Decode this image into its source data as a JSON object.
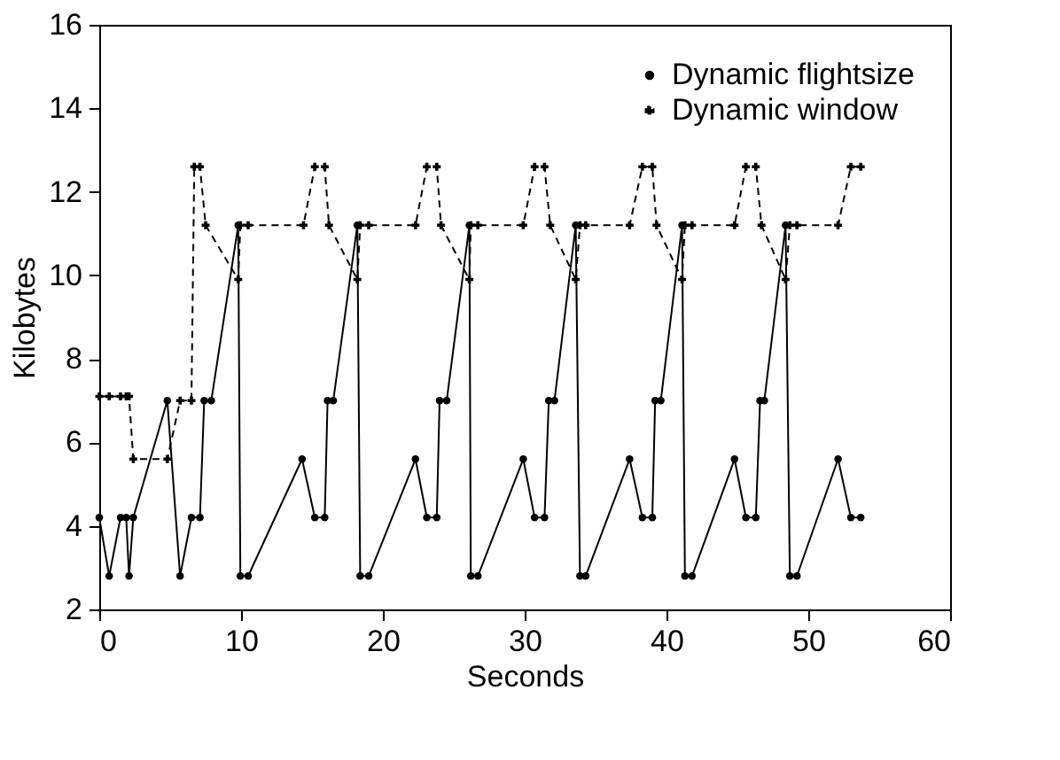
{
  "chart_data": {
    "type": "line",
    "xlabel": "Seconds",
    "ylabel": "Kilobytes",
    "xlim": [
      0,
      60
    ],
    "xticks": [
      0,
      10,
      20,
      30,
      40,
      50,
      60
    ],
    "ylim": [
      2,
      16
    ],
    "yticks": [
      2,
      4,
      6,
      8,
      10,
      12,
      14,
      16
    ],
    "grid": false,
    "legend": "top right",
    "series": [
      {
        "name": "Dynamic flightsize",
        "color": "#000000",
        "line_style": "solid",
        "marker": "circle",
        "x": [
          0,
          0.7,
          1.5,
          1.9,
          2.1,
          2.4,
          4.8,
          5.7,
          6.5,
          7.1,
          7.4,
          7.9,
          9.8,
          9.95,
          10.5,
          14.3,
          15.2,
          15.9,
          16.1,
          16.5,
          18.2,
          18.4,
          19.0,
          22.3,
          23.1,
          23.8,
          24.0,
          24.5,
          26.1,
          26.2,
          26.7,
          29.9,
          30.7,
          31.4,
          31.7,
          32.1,
          33.6,
          33.9,
          34.3,
          37.4,
          38.3,
          39.0,
          39.2,
          39.6,
          41.1,
          41.3,
          41.8,
          44.8,
          45.6,
          46.3,
          46.6,
          46.9,
          48.4,
          48.7,
          49.2,
          52.1,
          53.0,
          53.7
        ],
        "values": [
          4.2,
          2.8,
          4.2,
          4.2,
          2.8,
          4.2,
          7.0,
          2.8,
          4.2,
          4.2,
          7.0,
          7.0,
          11.2,
          2.8,
          2.8,
          5.6,
          4.2,
          4.2,
          7.0,
          7.0,
          11.2,
          2.8,
          2.8,
          5.6,
          4.2,
          4.2,
          7.0,
          7.0,
          11.2,
          2.8,
          2.8,
          5.6,
          4.2,
          4.2,
          7.0,
          7.0,
          11.2,
          2.8,
          2.8,
          5.6,
          4.2,
          4.2,
          7.0,
          7.0,
          11.2,
          2.8,
          2.8,
          5.6,
          4.2,
          4.2,
          7.0,
          7.0,
          11.2,
          2.8,
          2.8,
          5.6,
          4.2,
          4.2
        ]
      },
      {
        "name": "Dynamic window",
        "color": "#000000",
        "line_style": "dashed",
        "marker": "cross",
        "x": [
          0,
          0.7,
          1.5,
          1.9,
          2.1,
          2.4,
          4.8,
          5.7,
          6.5,
          6.7,
          7.1,
          7.5,
          9.8,
          9.95,
          10.5,
          14.4,
          15.2,
          15.9,
          16.2,
          18.2,
          18.4,
          19.0,
          22.3,
          23.1,
          23.8,
          24.1,
          26.1,
          26.2,
          26.7,
          29.9,
          30.7,
          31.4,
          31.8,
          33.6,
          33.9,
          34.3,
          37.4,
          38.3,
          39.0,
          39.3,
          41.1,
          41.3,
          41.8,
          44.8,
          45.6,
          46.3,
          46.7,
          48.4,
          48.7,
          49.2,
          52.1,
          53.0,
          53.7
        ],
        "values": [
          7.1,
          7.1,
          7.1,
          7.1,
          7.1,
          5.6,
          5.6,
          7.0,
          7.0,
          12.6,
          12.6,
          11.2,
          9.9,
          11.2,
          11.2,
          11.2,
          12.6,
          12.6,
          11.2,
          9.9,
          11.2,
          11.2,
          11.2,
          12.6,
          12.6,
          11.2,
          9.9,
          11.2,
          11.2,
          11.2,
          12.6,
          12.6,
          11.2,
          9.9,
          11.2,
          11.2,
          11.2,
          12.6,
          12.6,
          11.2,
          9.9,
          11.2,
          11.2,
          11.2,
          12.6,
          12.6,
          11.2,
          9.9,
          11.2,
          11.2,
          11.2,
          12.6,
          12.6
        ]
      }
    ]
  }
}
